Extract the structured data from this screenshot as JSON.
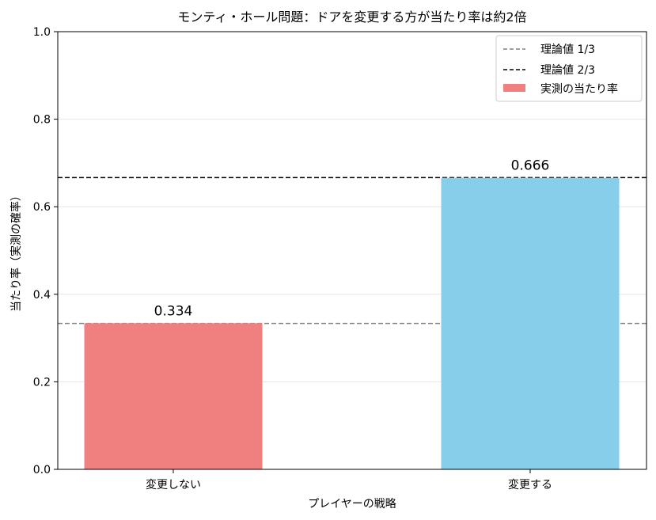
{
  "chart_data": {
    "type": "bar",
    "title": "モンティ・ホール問題：ドアを変更する方が当たり率は約2倍",
    "xlabel": "プレイヤーの戦略",
    "ylabel": "当たり率（実測の確率）",
    "categories": [
      "変更しない",
      "変更する"
    ],
    "series": [
      {
        "name": "実測の当たり率",
        "values": [
          0.334,
          0.666
        ],
        "colors": [
          "#f08080",
          "#87ceeb"
        ]
      }
    ],
    "data_labels": [
      "0.334",
      "0.666"
    ],
    "reference_lines": [
      {
        "name": "理論値 1/3",
        "value": 0.3333,
        "color": "#808080",
        "style": "dashed"
      },
      {
        "name": "理論値 2/3",
        "value": 0.6667,
        "color": "#000000",
        "style": "dashed"
      }
    ],
    "ylim": [
      0,
      1.0
    ],
    "yticks": [
      "0.0",
      "0.2",
      "0.4",
      "0.6",
      "0.8",
      "1.0"
    ],
    "ytick_values": [
      0.0,
      0.2,
      0.4,
      0.6,
      0.8,
      1.0
    ],
    "grid": "horizontal",
    "legend_position": "top-right",
    "legend": {
      "entries": [
        "理論値 1/3",
        "理論値 2/3",
        "実測の当たり率"
      ]
    }
  }
}
